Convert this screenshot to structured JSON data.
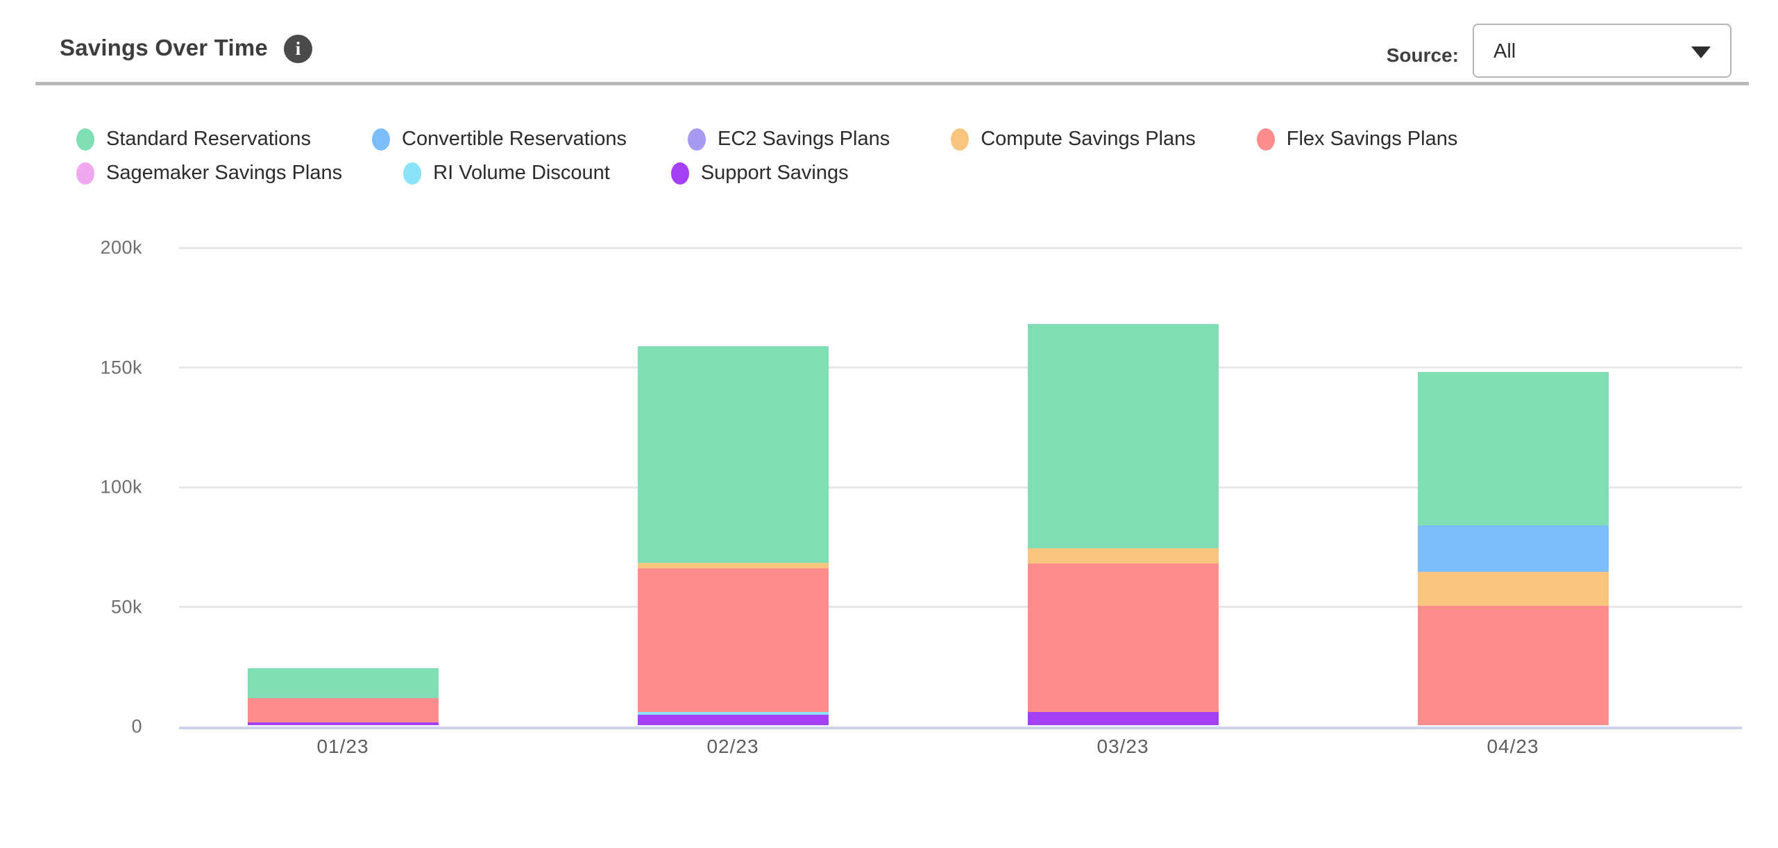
{
  "header": {
    "title": "Savings Over Time",
    "source_label": "Source:",
    "source_value": "All"
  },
  "icons": {
    "info": "i",
    "caret": "triangle-down"
  },
  "legend": {
    "items": [
      {
        "label": "Standard Reservations",
        "color": "#7FDEB3"
      },
      {
        "label": "Convertible Reservations",
        "color": "#7CBEFC"
      },
      {
        "label": "EC2 Savings Plans",
        "color": "#A79AF2"
      },
      {
        "label": "Compute Savings Plans",
        "color": "#F8C57E"
      },
      {
        "label": "Flex Savings Plans",
        "color": "#FF8D8D"
      },
      {
        "label": "Sagemaker Savings Plans",
        "color": "#F0A9F0"
      },
      {
        "label": "RI Volume Discount",
        "color": "#8AE3F9"
      },
      {
        "label": "Support Savings",
        "color": "#A440F6"
      }
    ]
  },
  "chart_data": {
    "type": "bar",
    "stacked": true,
    "title": "Savings Over Time",
    "xlabel": "",
    "ylabel": "",
    "categories": [
      "01/23",
      "02/23",
      "03/23",
      "04/23"
    ],
    "series": [
      {
        "name": "Support Savings",
        "color": "#A440F6",
        "values": [
          1300,
          4300,
          5400,
          0
        ]
      },
      {
        "name": "RI Volume Discount",
        "color": "#8AE3F9",
        "values": [
          0,
          1100,
          0,
          0
        ]
      },
      {
        "name": "Sagemaker Savings Plans",
        "color": "#F0A9F0",
        "values": [
          0,
          0,
          0,
          0
        ]
      },
      {
        "name": "Flex Savings Plans",
        "color": "#FF8D8D",
        "values": [
          10000,
          60000,
          62000,
          50000
        ]
      },
      {
        "name": "Compute Savings Plans",
        "color": "#F8C57E",
        "values": [
          0,
          2400,
          6500,
          14000
        ]
      },
      {
        "name": "EC2 Savings Plans",
        "color": "#A79AF2",
        "values": [
          0,
          0,
          0,
          0
        ]
      },
      {
        "name": "Convertible Reservations",
        "color": "#7CBEFC",
        "values": [
          0,
          0,
          0,
          19500
        ]
      },
      {
        "name": "Standard Reservations",
        "color": "#7FDEB3",
        "values": [
          12400,
          90500,
          93500,
          64000
        ]
      }
    ],
    "stack_order": "bottom-to-top",
    "totals": [
      23700,
      158300,
      167400,
      147500
    ],
    "ylim": [
      0,
      200000
    ],
    "yticks": [
      {
        "value": 0,
        "label": "0"
      },
      {
        "value": 50000,
        "label": "50k"
      },
      {
        "value": 100000,
        "label": "100k"
      },
      {
        "value": 150000,
        "label": "150k"
      },
      {
        "value": 200000,
        "label": "200k"
      }
    ],
    "grid": true,
    "legend_position": "top-left"
  }
}
